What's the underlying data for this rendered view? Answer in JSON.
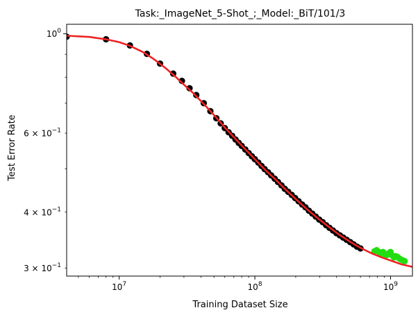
{
  "chart_data": {
    "type": "scatter",
    "title": "Task:_ImageNet_5-Shot_;_Model:_BiT/101/3",
    "xlabel": "Training Dataset Size",
    "ylabel": "Test Error Rate",
    "x_scale": "log",
    "y_scale": "log",
    "xlim": [
      4100000,
      1450000000
    ],
    "ylim": [
      0.288,
      1.05
    ],
    "grid": false,
    "x_ticks": [
      {
        "base": "10",
        "exp": "7",
        "value": 10000000
      },
      {
        "base": "10",
        "exp": "8",
        "value": 100000000
      },
      {
        "base": "10",
        "exp": "9",
        "value": 1000000000
      }
    ],
    "y_ticks": [
      {
        "base": "10",
        "exp": "0",
        "value": 1.0,
        "mantissa": ""
      },
      {
        "base": "10",
        "exp": "−1",
        "value": 0.6,
        "mantissa": "6 × "
      },
      {
        "base": "10",
        "exp": "−1",
        "value": 0.4,
        "mantissa": "4 × "
      },
      {
        "base": "10",
        "exp": "−1",
        "value": 0.3,
        "mantissa": "3 × "
      }
    ],
    "series": [
      {
        "color": "#000000",
        "marker": "circle",
        "points": [
          [
            4100000,
            0.985
          ],
          [
            8000000,
            0.972
          ],
          [
            12000000,
            0.942
          ],
          [
            16000000,
            0.902
          ],
          [
            20000000,
            0.858
          ],
          [
            25000000,
            0.815
          ],
          [
            29000000,
            0.785
          ],
          [
            33000000,
            0.756
          ],
          [
            37000000,
            0.73
          ],
          [
            42000000,
            0.7
          ],
          [
            47000000,
            0.672
          ],
          [
            52000000,
            0.648
          ],
          [
            56000000,
            0.631
          ],
          [
            60000000,
            0.616
          ],
          [
            64000000,
            0.603
          ],
          [
            68000000,
            0.592
          ],
          [
            72000000,
            0.581
          ],
          [
            76000000,
            0.571
          ],
          [
            80000000,
            0.562
          ],
          [
            85000000,
            0.552
          ],
          [
            90000000,
            0.542
          ],
          [
            95000000,
            0.533
          ],
          [
            100000000,
            0.525
          ],
          [
            106000000,
            0.516
          ],
          [
            112000000,
            0.507
          ],
          [
            118000000,
            0.499
          ],
          [
            125000000,
            0.491
          ],
          [
            132000000,
            0.483
          ],
          [
            140000000,
            0.475
          ],
          [
            148000000,
            0.467
          ],
          [
            157000000,
            0.459
          ],
          [
            166000000,
            0.451
          ],
          [
            176000000,
            0.444
          ],
          [
            187000000,
            0.437
          ],
          [
            198000000,
            0.43
          ],
          [
            210000000,
            0.423
          ],
          [
            223000000,
            0.416
          ],
          [
            236000000,
            0.41
          ],
          [
            250000000,
            0.403
          ],
          [
            265000000,
            0.397
          ],
          [
            281000000,
            0.391
          ],
          [
            298000000,
            0.385
          ],
          [
            316000000,
            0.38
          ],
          [
            335000000,
            0.374
          ],
          [
            355000000,
            0.369
          ],
          [
            376000000,
            0.364
          ],
          [
            399000000,
            0.359
          ],
          [
            423000000,
            0.355
          ],
          [
            448000000,
            0.351
          ],
          [
            475000000,
            0.347
          ],
          [
            504000000,
            0.343
          ],
          [
            534000000,
            0.339
          ],
          [
            566000000,
            0.335
          ],
          [
            600000000,
            0.332
          ]
        ]
      },
      {
        "color": "#22dd11",
        "marker": "circle",
        "points": [
          [
            760000000,
            0.327
          ],
          [
            790000000,
            0.329
          ],
          [
            820000000,
            0.326
          ],
          [
            850000000,
            0.323
          ],
          [
            880000000,
            0.326
          ],
          [
            910000000,
            0.322
          ],
          [
            940000000,
            0.321
          ],
          [
            970000000,
            0.324
          ],
          [
            1000000000,
            0.326
          ],
          [
            1030000000,
            0.32
          ],
          [
            1060000000,
            0.317
          ],
          [
            1090000000,
            0.319
          ],
          [
            1120000000,
            0.318
          ],
          [
            1150000000,
            0.316
          ],
          [
            1180000000,
            0.314
          ],
          [
            1210000000,
            0.313
          ],
          [
            1240000000,
            0.312
          ],
          [
            1270000000,
            0.311
          ]
        ]
      },
      {
        "type": "line",
        "color": "#ee2222",
        "points": [
          [
            4100000,
            0.99
          ],
          [
            6000000,
            0.984
          ],
          [
            8000000,
            0.972
          ],
          [
            10000000,
            0.958
          ],
          [
            12000000,
            0.94
          ],
          [
            15000000,
            0.91
          ],
          [
            18000000,
            0.878
          ],
          [
            22000000,
            0.838
          ],
          [
            26000000,
            0.802
          ],
          [
            30000000,
            0.77
          ],
          [
            35000000,
            0.738
          ],
          [
            40000000,
            0.708
          ],
          [
            46000000,
            0.677
          ],
          [
            52000000,
            0.65
          ],
          [
            60000000,
            0.618
          ],
          [
            70000000,
            0.588
          ],
          [
            80000000,
            0.563
          ],
          [
            90000000,
            0.543
          ],
          [
            100000000,
            0.525
          ],
          [
            120000000,
            0.496
          ],
          [
            140000000,
            0.475
          ],
          [
            165000000,
            0.452
          ],
          [
            200000000,
            0.428
          ],
          [
            240000000,
            0.407
          ],
          [
            290000000,
            0.388
          ],
          [
            350000000,
            0.371
          ],
          [
            420000000,
            0.356
          ],
          [
            500000000,
            0.344
          ],
          [
            600000000,
            0.333
          ],
          [
            720000000,
            0.324
          ],
          [
            860000000,
            0.317
          ],
          [
            1000000000,
            0.312
          ],
          [
            1200000000,
            0.306
          ],
          [
            1450000000,
            0.302
          ]
        ]
      }
    ]
  }
}
